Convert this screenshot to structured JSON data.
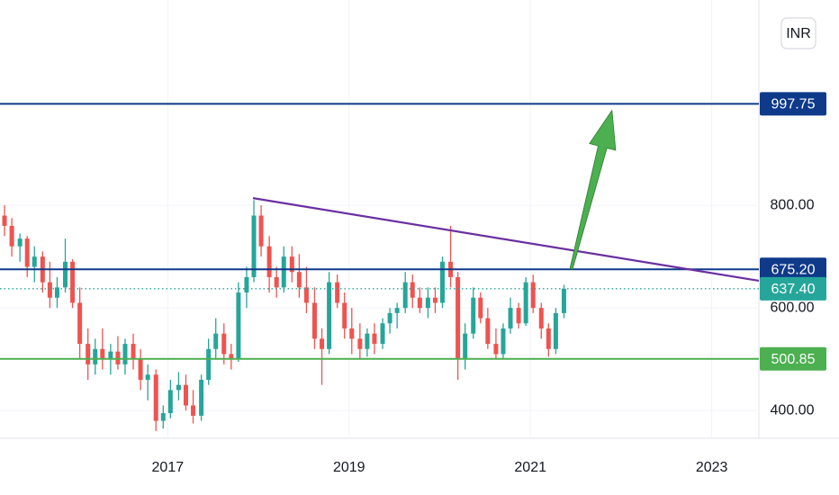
{
  "chart_data": {
    "type": "candlestick",
    "currency": "INR",
    "x": [
      2015.2,
      2015.28,
      2015.37,
      2015.45,
      2015.53,
      2015.62,
      2015.7,
      2015.78,
      2015.87,
      2015.95,
      2016.03,
      2016.12,
      2016.2,
      2016.28,
      2016.37,
      2016.45,
      2016.53,
      2016.62,
      2016.7,
      2016.78,
      2016.87,
      2016.95,
      2017.03,
      2017.12,
      2017.2,
      2017.28,
      2017.37,
      2017.45,
      2017.53,
      2017.62,
      2017.7,
      2017.78,
      2017.87,
      2017.95,
      2018.03,
      2018.12,
      2018.2,
      2018.28,
      2018.37,
      2018.45,
      2018.53,
      2018.62,
      2018.7,
      2018.78,
      2018.87,
      2018.95,
      2019.03,
      2019.12,
      2019.2,
      2019.28,
      2019.37,
      2019.45,
      2019.53,
      2019.62,
      2019.7,
      2019.78,
      2019.87,
      2019.95,
      2020.03,
      2020.12,
      2020.2,
      2020.28,
      2020.37,
      2020.45,
      2020.53,
      2020.62,
      2020.7,
      2020.78,
      2020.87,
      2020.95,
      2021.03,
      2021.12,
      2021.2,
      2021.28,
      2021.37
    ],
    "open": [
      780,
      760,
      720,
      735,
      680,
      700,
      650,
      620,
      640,
      690,
      610,
      530,
      490,
      520,
      500,
      515,
      490,
      530,
      500,
      460,
      470,
      380,
      395,
      440,
      450,
      410,
      390,
      460,
      520,
      550,
      510,
      500,
      630,
      660,
      780,
      720,
      660,
      640,
      700,
      670,
      640,
      610,
      540,
      520,
      650,
      610,
      560,
      540,
      520,
      550,
      530,
      570,
      590,
      600,
      650,
      620,
      600,
      620,
      610,
      690,
      660,
      500,
      550,
      620,
      580,
      530,
      510,
      560,
      600,
      570,
      650,
      600,
      560,
      520,
      590
    ],
    "high": [
      800,
      775,
      745,
      740,
      720,
      710,
      690,
      660,
      735,
      695,
      640,
      560,
      540,
      560,
      530,
      545,
      540,
      550,
      520,
      490,
      480,
      410,
      460,
      475,
      470,
      440,
      470,
      540,
      580,
      570,
      530,
      650,
      680,
      810,
      800,
      740,
      680,
      720,
      720,
      705,
      680,
      640,
      560,
      670,
      665,
      630,
      600,
      570,
      560,
      570,
      580,
      600,
      610,
      670,
      665,
      640,
      640,
      640,
      700,
      760,
      670,
      570,
      640,
      630,
      600,
      560,
      570,
      620,
      610,
      660,
      665,
      610,
      570,
      600,
      645
    ],
    "low": [
      740,
      700,
      690,
      660,
      650,
      630,
      600,
      600,
      630,
      600,
      500,
      460,
      470,
      480,
      470,
      480,
      470,
      480,
      440,
      420,
      360,
      365,
      385,
      420,
      400,
      375,
      380,
      450,
      500,
      490,
      480,
      495,
      600,
      650,
      700,
      630,
      620,
      630,
      650,
      620,
      590,
      520,
      450,
      510,
      600,
      540,
      510,
      500,
      505,
      510,
      520,
      550,
      560,
      590,
      600,
      590,
      580,
      590,
      600,
      640,
      460,
      480,
      540,
      570,
      520,
      500,
      500,
      550,
      560,
      565,
      590,
      540,
      505,
      510,
      580
    ],
    "close": [
      760,
      720,
      735,
      680,
      700,
      650,
      620,
      640,
      690,
      610,
      530,
      490,
      520,
      500,
      515,
      490,
      530,
      500,
      460,
      470,
      380,
      395,
      440,
      450,
      410,
      390,
      460,
      520,
      550,
      510,
      500,
      630,
      660,
      780,
      720,
      660,
      640,
      700,
      670,
      640,
      610,
      540,
      520,
      650,
      610,
      560,
      540,
      520,
      550,
      530,
      570,
      590,
      600,
      650,
      620,
      600,
      620,
      610,
      690,
      660,
      500,
      550,
      620,
      580,
      530,
      510,
      560,
      600,
      570,
      650,
      600,
      560,
      520,
      590,
      637.4
    ],
    "up_color": "#26a69a",
    "down_color": "#ef5350",
    "xlim": [
      2015.15,
      2023.52
    ],
    "ylim": [
      346,
      1200
    ],
    "xticks": [
      2017,
      2019,
      2021,
      2023
    ],
    "yticks": [
      {
        "value": 400,
        "label": "400.00"
      },
      {
        "value": 600,
        "label": "600.00"
      },
      {
        "value": 800,
        "label": "800.00"
      }
    ],
    "grid": true,
    "price_lines": [
      {
        "value": 997.75,
        "color": "#0f3a8a",
        "style": "solid"
      },
      {
        "value": 675.2,
        "label": "675.20",
        "color": "#0f3a8a",
        "style": "solid"
      },
      {
        "value": 637.4,
        "label": "637.40",
        "color": "#26a69a",
        "style": "dotted"
      },
      {
        "value": 500.85,
        "color": "#4caf50",
        "style": "solid"
      }
    ],
    "trendline": {
      "x": [
        2017.94,
        2023.52
      ],
      "y": [
        814,
        653
      ],
      "color": "#6a2fa0"
    },
    "arrow": {
      "x": [
        2021.45,
        2021.9
      ],
      "y": [
        676,
        985
      ],
      "color": "#4caf50"
    }
  }
}
